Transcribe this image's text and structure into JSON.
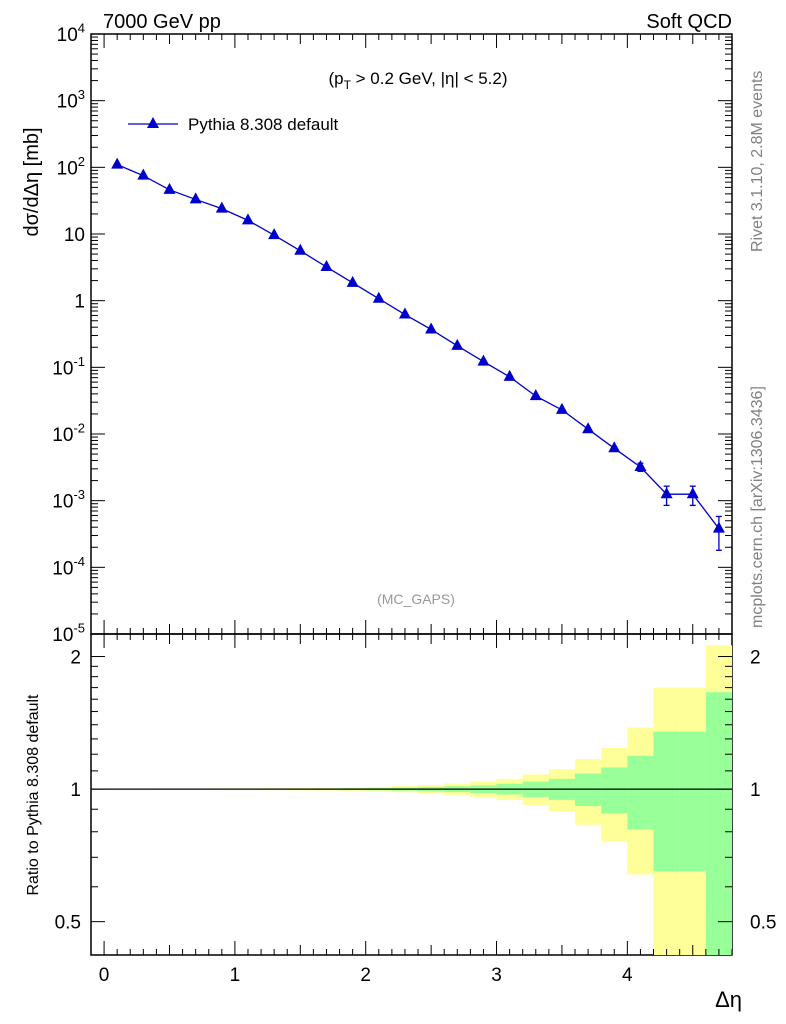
{
  "header": {
    "left": "7000 GeV pp",
    "right": "Soft QCD"
  },
  "cuts": "(p_T > 0.2 GeV, |η| < 5.2)",
  "analysis_tag": "(MC_GAPS)",
  "side_text": {
    "rivet": "Rivet 3.1.10,  2.8M events",
    "source": "mcplots.cern.ch [arXiv:1306.3436]"
  },
  "chart_data": [
    {
      "type": "line",
      "panel": "main",
      "ylabel": "dσ/dΔη [mb]",
      "xlabel": "",
      "yscale": "log",
      "ylim": [
        1e-05,
        10000.0
      ],
      "xlim": [
        -0.1,
        4.8
      ],
      "grid": false,
      "legend_position": "top-left",
      "y_tick_labels": [
        "10^-5",
        "10^-4",
        "10^-3",
        "10^-2",
        "10^-1",
        "1",
        "10",
        "10^2",
        "10^3",
        "10^4"
      ],
      "series": [
        {
          "name": "Pythia 8.308 default",
          "color": "#0000cc",
          "marker": "triangle",
          "x": [
            0.1,
            0.3,
            0.5,
            0.7,
            0.9,
            1.1,
            1.3,
            1.5,
            1.7,
            1.9,
            2.1,
            2.3,
            2.5,
            2.7,
            2.9,
            3.1,
            3.3,
            3.5,
            3.7,
            3.9,
            4.1,
            4.3,
            4.5,
            4.7
          ],
          "y": [
            110,
            75,
            46,
            33,
            24,
            16,
            9.6,
            5.6,
            3.2,
            1.85,
            1.07,
            0.62,
            0.37,
            0.21,
            0.122,
            0.072,
            0.037,
            0.023,
            0.0118,
            0.0061,
            0.0032,
            0.00125,
            0.00125,
            0.00038
          ],
          "y_err": [
            0,
            0,
            0,
            0,
            0,
            0,
            0,
            0,
            0,
            0,
            0,
            0,
            0,
            0,
            0,
            0,
            0,
            0,
            0,
            0,
            0.00045,
            0.0004,
            0.0004,
            0.0002
          ]
        }
      ]
    },
    {
      "type": "area",
      "panel": "ratio",
      "ylabel": "Ratio to Pythia 8.308 default",
      "xlabel": "Δη",
      "ylim": [
        0.42,
        2.25
      ],
      "xlim": [
        -0.1,
        4.8
      ],
      "x_ticks": [
        "0",
        "1",
        "2",
        "3",
        "4"
      ],
      "y_ticks": [
        "0.5",
        "1",
        "2"
      ],
      "grid": false,
      "bin_edges": [
        0.0,
        0.2,
        0.4,
        0.6,
        0.8,
        1.0,
        1.2,
        1.4,
        1.6,
        1.8,
        2.0,
        2.2,
        2.4,
        2.6,
        2.8,
        3.0,
        3.2,
        3.4,
        3.6,
        3.8,
        4.0,
        4.2,
        4.4,
        4.6,
        4.8
      ],
      "bands": [
        {
          "name": "stat-yellow",
          "color": "#ffff99",
          "upper": [
            1.002,
            1.002,
            1.003,
            1.003,
            1.004,
            1.004,
            1.005,
            1.006,
            1.007,
            1.009,
            1.012,
            1.016,
            1.022,
            1.03,
            1.04,
            1.055,
            1.08,
            1.11,
            1.17,
            1.24,
            1.38,
            1.7,
            1.7,
            2.12
          ],
          "lower": [
            0.998,
            0.998,
            0.997,
            0.997,
            0.996,
            0.996,
            0.995,
            0.994,
            0.993,
            0.991,
            0.988,
            0.984,
            0.978,
            0.97,
            0.96,
            0.945,
            0.92,
            0.89,
            0.83,
            0.76,
            0.64,
            0.42,
            0.42,
            0.42
          ]
        },
        {
          "name": "stat-green",
          "color": "#99ff99",
          "upper": [
            1.001,
            1.001,
            1.001,
            1.002,
            1.002,
            1.002,
            1.003,
            1.003,
            1.004,
            1.005,
            1.006,
            1.008,
            1.011,
            1.015,
            1.02,
            1.028,
            1.04,
            1.055,
            1.085,
            1.12,
            1.19,
            1.35,
            1.35,
            1.66
          ],
          "lower": [
            0.999,
            0.999,
            0.999,
            0.998,
            0.998,
            0.998,
            0.997,
            0.997,
            0.996,
            0.995,
            0.994,
            0.992,
            0.989,
            0.985,
            0.98,
            0.972,
            0.96,
            0.945,
            0.915,
            0.88,
            0.81,
            0.65,
            0.65,
            0.38
          ]
        }
      ],
      "reference_line": 1
    }
  ]
}
